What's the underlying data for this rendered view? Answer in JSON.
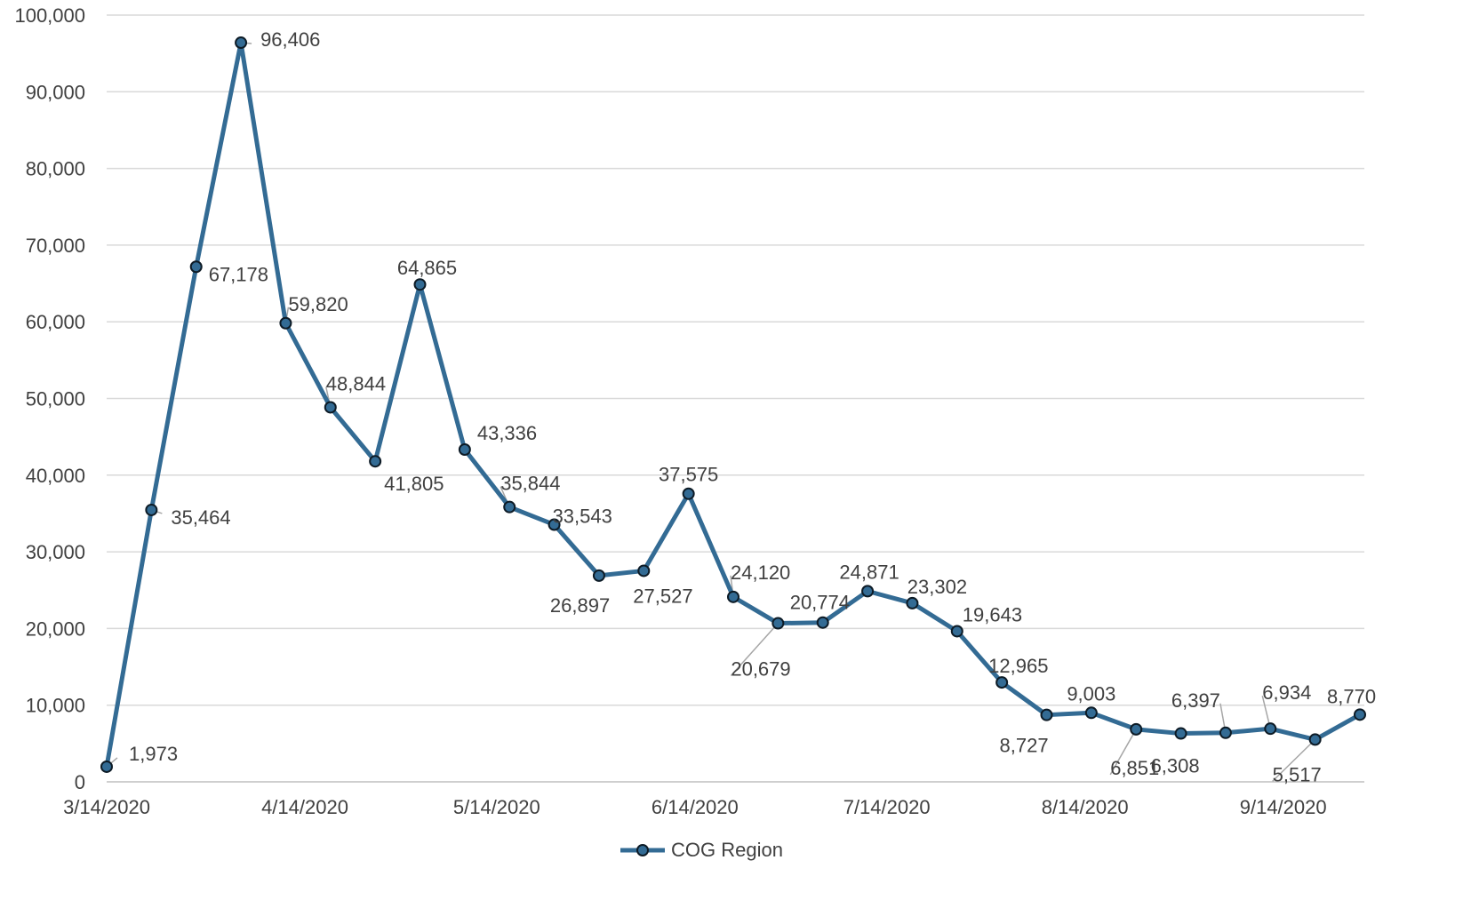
{
  "chart_data": {
    "type": "line",
    "title": "",
    "xlabel": "",
    "ylabel": "",
    "ylim": [
      0,
      100000
    ],
    "yticks": [
      "0",
      "10,000",
      "20,000",
      "30,000",
      "40,000",
      "50,000",
      "60,000",
      "70,000",
      "80,000",
      "90,000",
      "100,000"
    ],
    "xtick_labels": [
      "3/14/2020",
      "4/14/2020",
      "5/14/2020",
      "6/14/2020",
      "7/14/2020",
      "8/14/2020",
      "9/14/2020"
    ],
    "x": [
      "2020-03-14",
      "2020-03-21",
      "2020-03-28",
      "2020-04-04",
      "2020-04-11",
      "2020-04-18",
      "2020-04-25",
      "2020-05-02",
      "2020-05-09",
      "2020-05-16",
      "2020-05-23",
      "2020-05-30",
      "2020-06-06",
      "2020-06-13",
      "2020-06-20",
      "2020-06-27",
      "2020-07-04",
      "2020-07-11",
      "2020-07-18",
      "2020-07-25",
      "2020-08-01",
      "2020-08-08",
      "2020-08-15",
      "2020-08-22",
      "2020-08-29",
      "2020-09-05",
      "2020-09-12",
      "2020-09-19",
      "2020-09-26"
    ],
    "series": [
      {
        "name": "COG Region",
        "color": "#336b94",
        "values": [
          1973,
          35464,
          67178,
          96406,
          59820,
          48844,
          41805,
          64865,
          43336,
          35844,
          33543,
          26897,
          27527,
          37575,
          24120,
          20679,
          20774,
          24871,
          23302,
          19643,
          12965,
          8727,
          9003,
          6851,
          6308,
          6397,
          6934,
          5517,
          8770
        ],
        "labels": [
          "1,973",
          "35,464",
          "67,178",
          "96,406",
          "59,820",
          "48,844",
          "41,805",
          "64,865",
          "43,336",
          "35,844",
          "33,543",
          "26,897",
          "27,527",
          "37,575",
          "24,120",
          "20,679",
          "20,774",
          "24,871",
          "23,302",
          "19,643",
          "12,965",
          "8,727",
          "9,003",
          "6,851",
          "6,308",
          "6,397",
          "6,934",
          "5,517",
          "8,770"
        ]
      }
    ],
    "grid": true,
    "legend": "bottom-center"
  }
}
